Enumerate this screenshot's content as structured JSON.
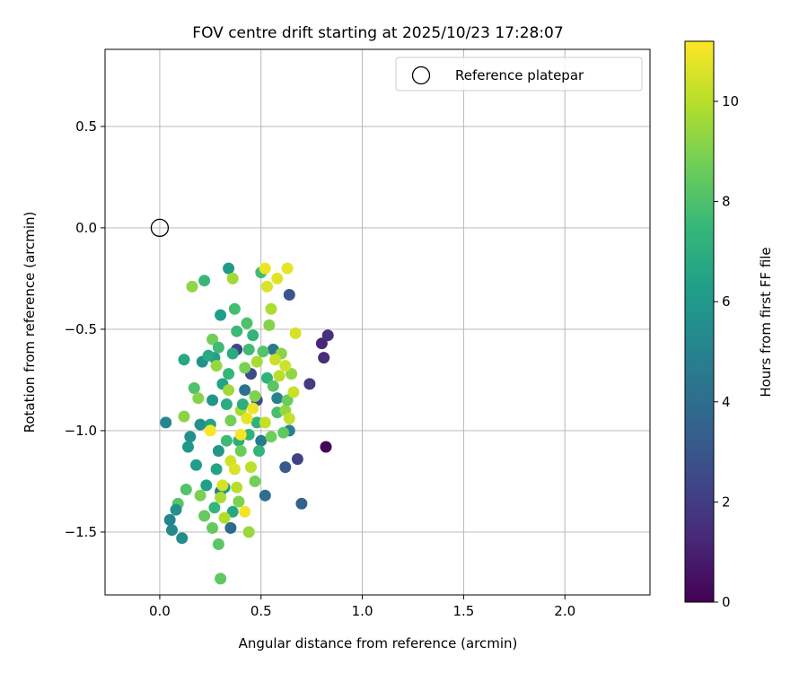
{
  "chart_data": {
    "type": "scatter",
    "title": "FOV centre drift starting at 2025/10/23 17:28:07",
    "xlabel": "Angular distance from reference (arcmin)",
    "ylabel": "Rotation from reference (arcmin)",
    "xlim": [
      -0.27,
      2.42
    ],
    "ylim": [
      -1.81,
      0.88
    ],
    "x_ticks": [
      0.0,
      0.5,
      1.0,
      1.5,
      2.0
    ],
    "x_tick_labels": [
      "0.0",
      "0.5",
      "1.0",
      "1.5",
      "2.0"
    ],
    "y_ticks": [
      0.5,
      0.0,
      -0.5,
      -1.0,
      -1.5
    ],
    "y_tick_labels": [
      "0.5",
      "0.0",
      "−0.5",
      "−1.0",
      "−1.5"
    ],
    "grid": true,
    "legend": {
      "position": "upper-right",
      "entries": [
        "Reference platepar"
      ]
    },
    "reference_point": {
      "x": 0.0,
      "y": 0.0,
      "label": "Reference platepar"
    },
    "colorbar": {
      "label": "Hours from first FF file",
      "min": 0,
      "max": 11.2,
      "ticks": [
        0,
        2,
        4,
        6,
        8,
        10
      ],
      "tick_labels": [
        "0",
        "2",
        "4",
        "6",
        "8",
        "10"
      ],
      "colormap": "viridis",
      "stops": [
        "#440154",
        "#482878",
        "#3e4989",
        "#31688e",
        "#26828e",
        "#1f9e89",
        "#35b779",
        "#6ece58",
        "#b5de2b",
        "#fde725"
      ]
    },
    "series": [
      {
        "name": "FOV centre",
        "points": [
          [
            0.82,
            -1.08,
            0.1
          ],
          [
            0.8,
            -0.57,
            1.2
          ],
          [
            0.81,
            -0.64,
            1.4
          ],
          [
            0.83,
            -0.53,
            1.6
          ],
          [
            0.74,
            -0.77,
            2.0
          ],
          [
            0.68,
            -1.14,
            2.2
          ],
          [
            0.38,
            -0.6,
            2.3
          ],
          [
            0.48,
            -0.85,
            2.5
          ],
          [
            0.45,
            -0.72,
            2.6
          ],
          [
            0.64,
            -0.33,
            3.0
          ],
          [
            0.62,
            -1.18,
            3.2
          ],
          [
            0.7,
            -1.36,
            3.5
          ],
          [
            0.35,
            -1.48,
            3.8
          ],
          [
            0.52,
            -1.32,
            4.0
          ],
          [
            0.42,
            -0.8,
            4.2
          ],
          [
            0.56,
            -0.6,
            4.4
          ],
          [
            0.5,
            -1.05,
            4.6
          ],
          [
            0.3,
            -1.3,
            4.7
          ],
          [
            0.64,
            -1.0,
            4.9
          ],
          [
            0.58,
            -0.84,
            5.0
          ],
          [
            0.05,
            -1.44,
            5.1
          ],
          [
            0.06,
            -1.49,
            5.3
          ],
          [
            0.11,
            -1.53,
            5.4
          ],
          [
            0.15,
            -1.03,
            5.5
          ],
          [
            0.2,
            -0.97,
            5.6
          ],
          [
            0.21,
            -0.66,
            5.7
          ],
          [
            0.26,
            -0.85,
            5.8
          ],
          [
            0.29,
            -1.1,
            5.9
          ],
          [
            0.32,
            -1.28,
            6.0
          ],
          [
            0.34,
            -0.2,
            6.1
          ],
          [
            0.3,
            -0.43,
            6.2
          ],
          [
            0.27,
            -0.64,
            6.3
          ],
          [
            0.25,
            -0.97,
            6.4
          ],
          [
            0.28,
            -1.19,
            6.5
          ],
          [
            0.36,
            -1.4,
            6.6
          ],
          [
            0.12,
            -0.65,
            6.7
          ],
          [
            0.24,
            -0.63,
            6.8
          ],
          [
            0.33,
            -0.87,
            6.9
          ],
          [
            0.39,
            -1.05,
            7.0
          ],
          [
            0.48,
            -0.96,
            7.1
          ],
          [
            0.53,
            -0.74,
            7.2
          ],
          [
            0.46,
            -0.53,
            7.3
          ],
          [
            0.34,
            -0.72,
            7.4
          ],
          [
            0.22,
            -0.26,
            7.5
          ],
          [
            0.38,
            -0.51,
            7.6
          ],
          [
            0.44,
            -0.6,
            7.7
          ],
          [
            0.5,
            -0.22,
            7.8
          ],
          [
            0.58,
            -0.91,
            7.9
          ],
          [
            0.17,
            -0.79,
            8.0
          ],
          [
            0.13,
            -1.29,
            8.1
          ],
          [
            0.09,
            -1.36,
            8.2
          ],
          [
            0.29,
            -1.56,
            8.3
          ],
          [
            0.3,
            -1.73,
            8.4
          ],
          [
            0.22,
            -1.42,
            8.5
          ],
          [
            0.4,
            -1.1,
            8.6
          ],
          [
            0.26,
            -0.55,
            8.7
          ],
          [
            0.35,
            -0.95,
            8.8
          ],
          [
            0.42,
            -0.69,
            8.9
          ],
          [
            0.47,
            -0.83,
            9.0
          ],
          [
            0.54,
            -0.48,
            9.1
          ],
          [
            0.6,
            -0.62,
            9.2
          ],
          [
            0.65,
            -0.72,
            9.3
          ],
          [
            0.62,
            -0.9,
            9.4
          ],
          [
            0.44,
            -1.5,
            9.5
          ],
          [
            0.36,
            -0.25,
            9.6
          ],
          [
            0.4,
            -0.9,
            9.7
          ],
          [
            0.3,
            -1.33,
            9.8
          ],
          [
            0.32,
            -1.43,
            9.9
          ],
          [
            0.38,
            -1.28,
            10.0
          ],
          [
            0.45,
            -1.18,
            10.1
          ],
          [
            0.52,
            -0.96,
            10.2
          ],
          [
            0.57,
            -0.65,
            10.3
          ],
          [
            0.62,
            -0.68,
            10.4
          ],
          [
            0.67,
            -0.52,
            10.5
          ],
          [
            0.53,
            -0.29,
            10.6
          ],
          [
            0.58,
            -0.25,
            10.7
          ],
          [
            0.63,
            -0.2,
            10.8
          ],
          [
            0.52,
            -0.2,
            10.9
          ],
          [
            0.42,
            -1.4,
            11.0
          ],
          [
            0.25,
            -1.0,
            11.1
          ],
          [
            0.03,
            -0.96,
            5.2
          ],
          [
            0.08,
            -1.39,
            5.6
          ],
          [
            0.14,
            -1.08,
            5.9
          ],
          [
            0.18,
            -1.17,
            6.2
          ],
          [
            0.23,
            -1.27,
            6.3
          ],
          [
            0.31,
            -0.77,
            6.5
          ],
          [
            0.36,
            -0.62,
            6.8
          ],
          [
            0.41,
            -0.87,
            7.0
          ],
          [
            0.44,
            -1.02,
            7.2
          ],
          [
            0.49,
            -1.1,
            7.3
          ],
          [
            0.27,
            -1.38,
            7.4
          ],
          [
            0.33,
            -1.05,
            7.6
          ],
          [
            0.29,
            -0.59,
            7.7
          ],
          [
            0.37,
            -0.4,
            7.8
          ],
          [
            0.43,
            -0.47,
            8.0
          ],
          [
            0.51,
            -0.61,
            8.1
          ],
          [
            0.56,
            -0.78,
            8.3
          ],
          [
            0.61,
            -1.01,
            8.4
          ],
          [
            0.63,
            -0.85,
            8.6
          ],
          [
            0.55,
            -1.03,
            8.7
          ],
          [
            0.47,
            -1.25,
            8.8
          ],
          [
            0.39,
            -1.35,
            9.0
          ],
          [
            0.19,
            -0.84,
            9.1
          ],
          [
            0.16,
            -0.29,
            9.3
          ],
          [
            0.28,
            -0.68,
            9.4
          ],
          [
            0.34,
            -0.8,
            9.6
          ],
          [
            0.48,
            -0.66,
            9.7
          ],
          [
            0.55,
            -0.4,
            9.8
          ],
          [
            0.59,
            -0.73,
            10.0
          ],
          [
            0.64,
            -0.94,
            10.2
          ],
          [
            0.66,
            -0.81,
            10.3
          ],
          [
            0.35,
            -1.15,
            10.4
          ],
          [
            0.31,
            -1.27,
            10.5
          ],
          [
            0.37,
            -1.19,
            10.6
          ],
          [
            0.43,
            -0.94,
            10.8
          ],
          [
            0.46,
            -0.89,
            10.9
          ],
          [
            0.4,
            -1.02,
            11.1
          ],
          [
            0.12,
            -0.93,
            9.2
          ],
          [
            0.2,
            -1.32,
            8.9
          ],
          [
            0.26,
            -1.48,
            8.5
          ]
        ]
      }
    ]
  }
}
